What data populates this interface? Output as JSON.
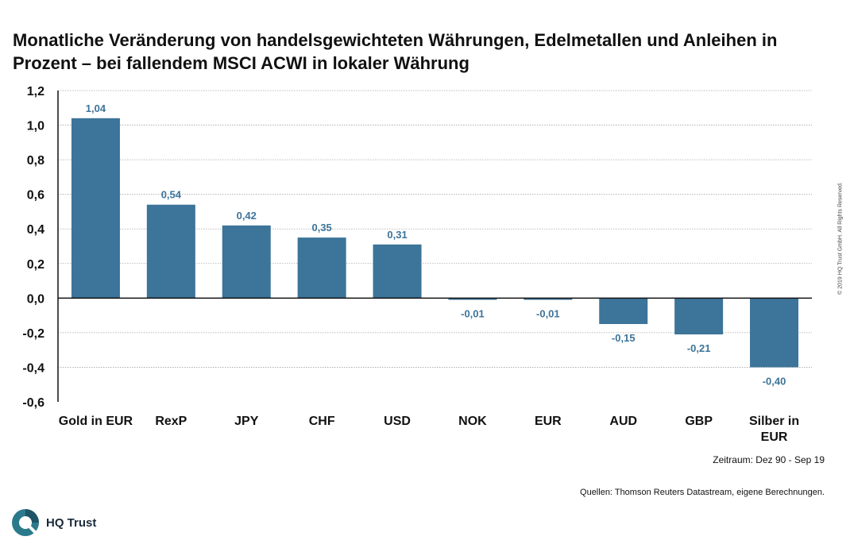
{
  "title_line1": "Monatliche Veränderung von handelsgewichteten Währungen, Edelmetallen und Anleihen in",
  "title_line2": "Prozent – bei fallendem MSCI ACWI in lokaler Währung",
  "copyright": "© 2019 HQ Trust GmbH. All Rights Reserved.",
  "period_note": "Zeitraum: Dez 90 - Sep 19",
  "sources_note": "Quellen: Thomson Reuters Datastream, eigene Berechnungen.",
  "logo_text": "HQ Trust",
  "colors": {
    "bar": "#3d7499",
    "label": "#3d7499",
    "grid": "#a6a6a6"
  },
  "chart_data": {
    "type": "bar",
    "categories": [
      [
        "Gold in EUR"
      ],
      [
        "RexP"
      ],
      [
        "JPY"
      ],
      [
        "CHF"
      ],
      [
        "USD"
      ],
      [
        "NOK"
      ],
      [
        "EUR"
      ],
      [
        "AUD"
      ],
      [
        "GBP"
      ],
      [
        "Silber in",
        "EUR"
      ]
    ],
    "values": [
      1.04,
      0.54,
      0.42,
      0.35,
      0.31,
      -0.01,
      -0.01,
      -0.15,
      -0.21,
      -0.4
    ],
    "value_labels": [
      "1,04",
      "0,54",
      "0,42",
      "0,35",
      "0,31",
      "-0,01",
      "-0,01",
      "-0,15",
      "-0,21",
      "-0,40"
    ],
    "yticks": [
      1.2,
      1.0,
      0.8,
      0.6,
      0.4,
      0.2,
      0.0,
      -0.2,
      -0.4,
      -0.6
    ],
    "ytick_labels": [
      "1,2",
      "1,0",
      "0,8",
      "0,6",
      "0,4",
      "0,2",
      "0,0",
      "-0,2",
      "-0,4",
      "-0,6"
    ],
    "ylim": [
      -0.6,
      1.2
    ],
    "grid": true,
    "legend": "none"
  }
}
